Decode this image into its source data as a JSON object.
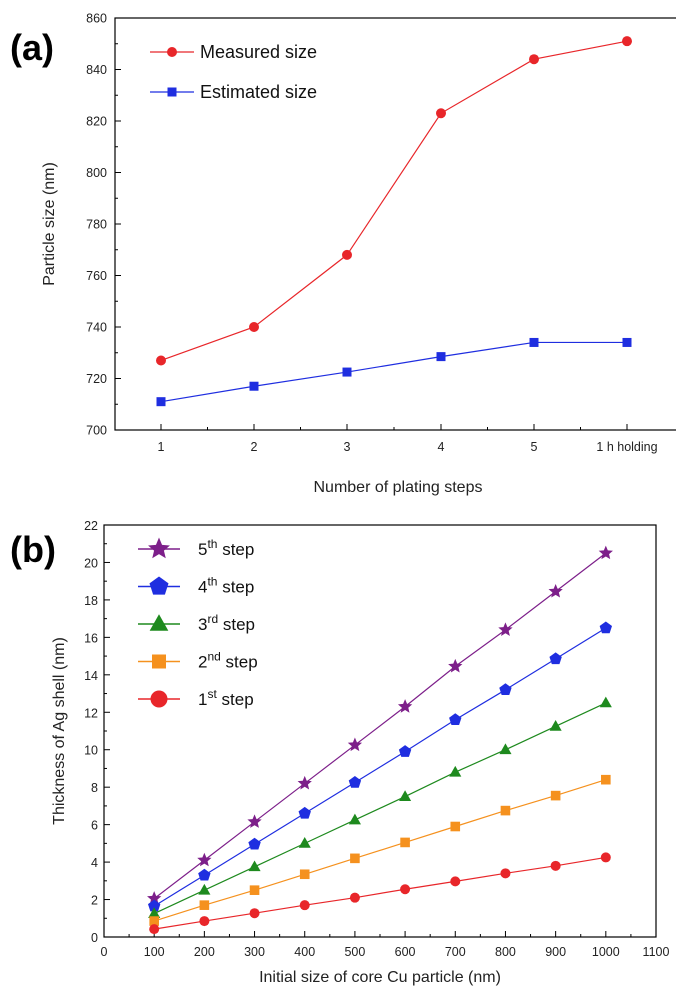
{
  "chart_data": [
    {
      "panel_label": "(a)",
      "type": "line",
      "xlabel": "Number of plating steps",
      "ylabel": "Particle size (nm)",
      "categories": [
        "1",
        "2",
        "3",
        "4",
        "5",
        "1 h holding"
      ],
      "ylim": [
        700,
        860
      ],
      "yticks": [
        "700",
        "720",
        "740",
        "760",
        "780",
        "800",
        "820",
        "840",
        "860"
      ],
      "legend_position": "top-left",
      "series": [
        {
          "name": "Measured size",
          "color": "#e8262a",
          "marker": "circle",
          "values": [
            727,
            740,
            768,
            823,
            844,
            851
          ]
        },
        {
          "name": "Estimated size",
          "color": "#1f2ee0",
          "marker": "square",
          "values": [
            711,
            717,
            722.5,
            728.5,
            734,
            734
          ]
        }
      ]
    },
    {
      "panel_label": "(b)",
      "type": "line",
      "xlabel": "Initial size of core Cu particle (nm)",
      "ylabel": "Thickness of Ag shell (nm)",
      "x": [
        100,
        200,
        300,
        400,
        500,
        600,
        700,
        800,
        900,
        1000
      ],
      "xlim": [
        0,
        1100
      ],
      "ylim": [
        0,
        22
      ],
      "xticks": [
        "0",
        "100",
        "200",
        "300",
        "400",
        "500",
        "600",
        "700",
        "800",
        "900",
        "1000",
        "1100"
      ],
      "yticks": [
        "0",
        "2",
        "4",
        "6",
        "8",
        "10",
        "12",
        "14",
        "16",
        "18",
        "20",
        "22"
      ],
      "legend_position": "top-left",
      "series": [
        {
          "name_base": "5",
          "name_sup": "th",
          "name_rest": " step",
          "color": "#7d1f8a",
          "marker": "star",
          "values": [
            2.05,
            4.1,
            6.15,
            8.2,
            10.25,
            12.3,
            14.45,
            16.4,
            18.45,
            20.5
          ]
        },
        {
          "name_base": "4",
          "name_sup": "th",
          "name_rest": " step",
          "color": "#1f2ee0",
          "marker": "pentagon",
          "values": [
            1.65,
            3.3,
            4.95,
            6.6,
            8.25,
            9.9,
            11.6,
            13.2,
            14.85,
            16.5
          ]
        },
        {
          "name_base": "3",
          "name_sup": "rd",
          "name_rest": " step",
          "color": "#1e8a1e",
          "marker": "triangle",
          "values": [
            1.25,
            2.5,
            3.75,
            5.0,
            6.25,
            7.5,
            8.8,
            10.0,
            11.25,
            12.5
          ]
        },
        {
          "name_base": "2",
          "name_sup": "nd",
          "name_rest": " step",
          "color": "#f5911e",
          "marker": "square",
          "values": [
            0.85,
            1.7,
            2.5,
            3.35,
            4.2,
            5.05,
            5.9,
            6.75,
            7.55,
            8.4
          ]
        },
        {
          "name_base": "1",
          "name_sup": "st",
          "name_rest": " step",
          "color": "#e8262a",
          "marker": "circle",
          "values": [
            0.42,
            0.85,
            1.27,
            1.7,
            2.1,
            2.55,
            2.97,
            3.4,
            3.8,
            4.25
          ]
        }
      ]
    }
  ]
}
